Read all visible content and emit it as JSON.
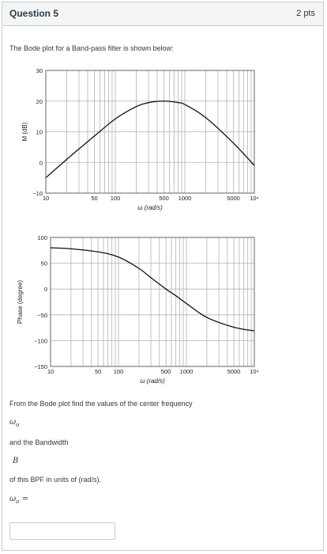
{
  "question": {
    "title": "Question 5",
    "points": "2 pts",
    "intro": "The Bode plot for a Band-pass filter is shown below:",
    "prompt_line": "From the Bode plot find the values of the center frequency",
    "omega_symbol": "ω",
    "omega_subscript": "o",
    "and_bandwidth": "and the Bandwidth",
    "b_symbol": "B",
    "units_line": "of this BPF in units of (rad/s).",
    "equation_rhs": "=",
    "answer_value": "",
    "answer_placeholder": ""
  },
  "chart_data": [
    {
      "type": "line",
      "title": "",
      "xlabel": "ω (rad/s)",
      "ylabel": "M (dB)",
      "xscale": "log",
      "xlim": [
        10,
        10000
      ],
      "ylim": [
        -10,
        30
      ],
      "grid": true,
      "x_ticks": [
        "10",
        "50",
        "100",
        "500",
        "1000",
        "5000",
        "10⁴"
      ],
      "y_ticks": [
        "30",
        "20",
        "10",
        "0",
        "-10"
      ],
      "series": [
        {
          "x": [
            10,
            20,
            50,
            100,
            200,
            300,
            400,
            500,
            600,
            800,
            1000,
            2000,
            5000,
            10000
          ],
          "y": [
            -5,
            1,
            8.6,
            14.2,
            18.2,
            19.5,
            19.9,
            20,
            19.9,
            19.5,
            18.9,
            14.6,
            6.3,
            -1
          ]
        }
      ]
    },
    {
      "type": "line",
      "title": "",
      "xlabel": "ω (rad/s)",
      "ylabel": "Phase (degree)",
      "xscale": "log",
      "xlim": [
        10,
        10000
      ],
      "ylim": [
        -150,
        100
      ],
      "grid": true,
      "x_ticks": [
        "10",
        "50",
        "100",
        "500",
        "1000",
        "5000",
        "10⁴"
      ],
      "y_ticks": [
        "100",
        "50",
        "0",
        "-50",
        "-100",
        "-150"
      ],
      "series": [
        {
          "x": [
            10,
            20,
            50,
            100,
            200,
            300,
            500,
            700,
            1000,
            2000,
            5000,
            10000
          ],
          "y": [
            80,
            78,
            72,
            62,
            40,
            22,
            0,
            -13,
            -28,
            -55,
            -74,
            -81
          ]
        }
      ]
    }
  ]
}
